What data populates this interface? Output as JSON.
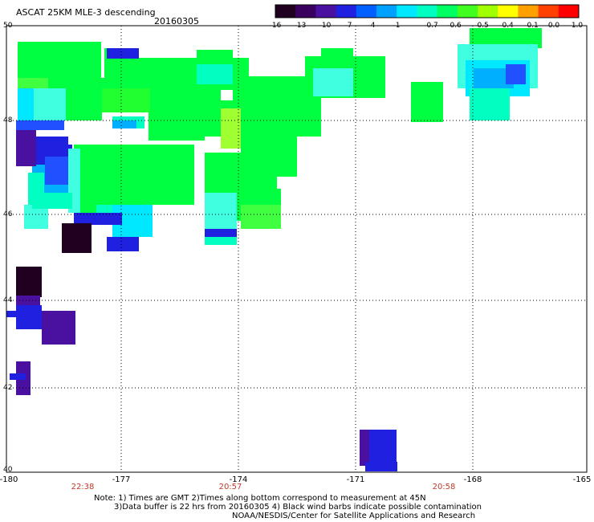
{
  "header": {
    "title": "ASCAT 25KM MLE-3 descending",
    "date": "20160305"
  },
  "colorbar": {
    "ticks": [
      "-16",
      "-13",
      "-10",
      "-7",
      "-4",
      "-1",
      "-0.7",
      "-0.6",
      "-0.5",
      "-0.4",
      "-0.1",
      "0.0",
      "1.0"
    ],
    "colors": [
      "#200020",
      "#3a0060",
      "#4a10a0",
      "#2020e0",
      "#0060ff",
      "#00a0ff",
      "#00e8ff",
      "#00ffc0",
      "#00ff60",
      "#40ff20",
      "#a0ff00",
      "#ffff00",
      "#ffa000",
      "#ff4000",
      "#ff0000"
    ]
  },
  "axes": {
    "lat_labels": [
      "50",
      "48",
      "46",
      "44",
      "42",
      "40"
    ],
    "lon_labels": [
      "-180",
      "-177",
      "-174",
      "-171",
      "-168",
      "-165"
    ],
    "grid": true
  },
  "times": [
    "22:38",
    "20:57",
    "20:58"
  ],
  "notes": {
    "line1": "Note: 1) Times are GMT 2)Times along bottom correspond to measurement at 45N",
    "line2": "3)Data buffer is 22 hrs from 20160305 4) Black wind barbs indicate possible contamination",
    "line3": "NOAA/NESDIS/Center for Satellite Applications and Research"
  }
}
